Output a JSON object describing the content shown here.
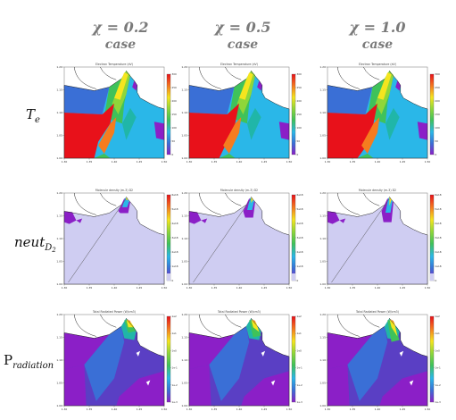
{
  "columns": [
    {
      "chi": "χ = 0.2",
      "case": "case"
    },
    {
      "chi": "χ = 0.5",
      "case": "case"
    },
    {
      "chi": "χ = 1.0",
      "case": "case"
    }
  ],
  "rows": [
    {
      "label_main": "T",
      "label_sub": "e",
      "label_style": "italic"
    },
    {
      "label_main": "neut",
      "label_sub": "D",
      "label_subsub": "2",
      "label_style": "italic"
    },
    {
      "label_main": "P",
      "label_sub": "radiation",
      "label_style": "upright"
    }
  ],
  "chart_data": [
    {
      "type": "heatmap",
      "row": "Te",
      "column": "χ = 0.2",
      "title": "Electron Temperature (eV)",
      "colormap": "rainbow",
      "x_ticks": [
        "1.30",
        "1.35",
        "1.40",
        "1.45",
        "1.50"
      ],
      "y_ticks": [
        "1.00",
        "1.05",
        "1.10",
        "1.15",
        "1.20"
      ],
      "colorbar_ticks": [
        "300",
        "250",
        "200",
        "150",
        "100",
        "50",
        "0"
      ]
    },
    {
      "type": "heatmap",
      "row": "Te",
      "column": "χ = 0.5",
      "title": "Electron Temperature (eV)",
      "colormap": "rainbow",
      "x_ticks": [
        "1.30",
        "1.35",
        "1.40",
        "1.45",
        "1.50"
      ],
      "y_ticks": [
        "1.00",
        "1.05",
        "1.10",
        "1.15",
        "1.20"
      ],
      "colorbar_ticks": [
        "300",
        "250",
        "200",
        "150",
        "100",
        "50",
        "0"
      ]
    },
    {
      "type": "heatmap",
      "row": "Te",
      "column": "χ = 1.0",
      "title": "Electron Temperature (eV)",
      "colormap": "rainbow",
      "x_ticks": [
        "1.30",
        "1.35",
        "1.40",
        "1.45",
        "1.50"
      ],
      "y_ticks": [
        "1.00",
        "1.05",
        "1.10",
        "1.15",
        "1.20"
      ],
      "colorbar_ticks": [
        "300",
        "250",
        "200",
        "150",
        "100",
        "50",
        "0"
      ]
    },
    {
      "type": "heatmap",
      "row": "neutD2",
      "column": "χ = 0.2",
      "title": "Molecule density (m-3) D2",
      "colormap": "rainbow",
      "x_ticks": [
        "1.30",
        "1.35",
        "1.40",
        "1.45",
        "1.50"
      ],
      "y_ticks": [
        "1.00",
        "1.05",
        "1.10",
        "1.15",
        "1.20"
      ],
      "colorbar_ticks": [
        "6e18",
        "5e18",
        "4e18",
        "3e18",
        "2e18",
        "1e18",
        "0"
      ]
    },
    {
      "type": "heatmap",
      "row": "neutD2",
      "column": "χ = 0.5",
      "title": "Molecule density (m-3) D2",
      "colormap": "rainbow",
      "x_ticks": [
        "1.30",
        "1.35",
        "1.40",
        "1.45",
        "1.50"
      ],
      "y_ticks": [
        "1.00",
        "1.05",
        "1.10",
        "1.15",
        "1.20"
      ],
      "colorbar_ticks": [
        "6e18",
        "5e18",
        "4e18",
        "3e18",
        "2e18",
        "1e18",
        "0"
      ]
    },
    {
      "type": "heatmap",
      "row": "neutD2",
      "column": "χ = 1.0",
      "title": "Molecule density (m-3) D2",
      "colormap": "rainbow",
      "x_ticks": [
        "1.30",
        "1.35",
        "1.40",
        "1.45",
        "1.50"
      ],
      "y_ticks": [
        "1.00",
        "1.05",
        "1.10",
        "1.15",
        "1.20"
      ],
      "colorbar_ticks": [
        "6e18",
        "5e18",
        "4e18",
        "3e18",
        "2e18",
        "1e18",
        "0"
      ]
    },
    {
      "type": "heatmap",
      "row": "Prad",
      "column": "χ = 0.2",
      "title": "Total Radiated Power (W/cm3)",
      "colormap": "rainbow",
      "x_ticks": [
        "1.30",
        "1.35",
        "1.40",
        "1.45",
        "1.50"
      ],
      "y_ticks": [
        "1.00",
        "1.05",
        "1.10",
        "1.15",
        "1.20"
      ],
      "colorbar_ticks": [
        "1e2",
        "1e1",
        "1e0",
        "1e-1",
        "1e-2",
        "1e-3"
      ]
    },
    {
      "type": "heatmap",
      "row": "Prad",
      "column": "χ = 0.5",
      "title": "Total Radiated Power (W/cm3)",
      "colormap": "rainbow",
      "x_ticks": [
        "1.30",
        "1.35",
        "1.40",
        "1.45",
        "1.50"
      ],
      "y_ticks": [
        "1.00",
        "1.05",
        "1.10",
        "1.15",
        "1.20"
      ],
      "colorbar_ticks": [
        "1e2",
        "1e1",
        "1e0",
        "1e-1",
        "1e-2",
        "1e-3"
      ]
    },
    {
      "type": "heatmap",
      "row": "Prad",
      "column": "χ = 1.0",
      "title": "Total Radiated Power (W/cm3)",
      "colormap": "rainbow",
      "x_ticks": [
        "1.30",
        "1.35",
        "1.40",
        "1.45",
        "1.50"
      ],
      "y_ticks": [
        "1.00",
        "1.05",
        "1.10",
        "1.15",
        "1.20"
      ],
      "colorbar_ticks": [
        "1e2",
        "1e1",
        "1e0",
        "1e-1",
        "1e-2",
        "1e-3"
      ]
    }
  ],
  "colors": {
    "red": "#e8111a",
    "orange": "#f57c1f",
    "yellow": "#f5e51f",
    "lime": "#8fd63a",
    "green": "#3fc25a",
    "teal": "#20b6a8",
    "cyan": "#2ab7e8",
    "blue": "#3a6fd6",
    "indigo": "#5a3fc4",
    "purple": "#8b1fc7",
    "lavender": "#cfcdf2",
    "white": "#ffffff"
  }
}
